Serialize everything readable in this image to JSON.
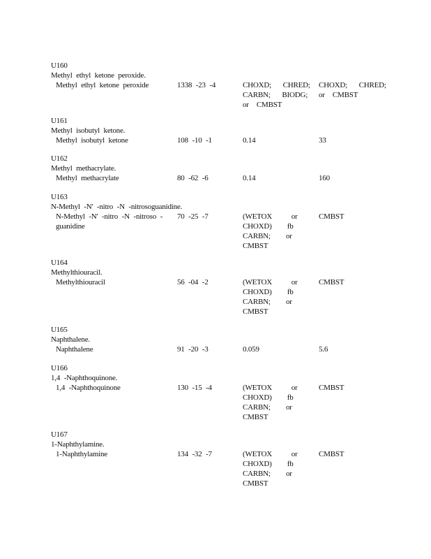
{
  "entries": [
    {
      "code": "U160",
      "heading": "Methyl ethyl ketone peroxide.",
      "name": [
        "Methyl ethyl ketone peroxide"
      ],
      "cas": "1338 -23 -4",
      "wastewater": [
        "CHOXD;   CHRED;",
        "CARBN;   BIODG;",
        "or  CMBST"
      ],
      "nonwastewater": [
        "CHOXD;   CHRED;",
        "or  CMBST"
      ]
    },
    {
      "code": "U161",
      "heading": "Methyl isobutyl ketone.",
      "name": [
        "Methyl isobutyl ketone"
      ],
      "cas": "108 -10 -1",
      "wastewater": [
        "0.14"
      ],
      "nonwastewater": [
        "33"
      ]
    },
    {
      "code": "U162",
      "heading": "Methyl methacrylate.",
      "name": [
        "Methyl methacrylate"
      ],
      "cas": "80 -62 -6",
      "wastewater": [
        "0.14"
      ],
      "nonwastewater": [
        "160"
      ]
    },
    {
      "code": "U163",
      "heading": "N-Methyl -N' -nitro -N -nitrosoguanidine.",
      "name": [
        "N-Methyl -N' -nitro -N -nitroso -",
        "guanidine"
      ],
      "cas": "70 -25 -7",
      "wastewater": [
        "(WETOX     or",
        "CHOXD)    fb",
        "CARBN;    or",
        "CMBST"
      ],
      "nonwastewater": [
        "CMBST"
      ]
    },
    {
      "code": "U164",
      "heading": "Methylthiouracil.",
      "name": [
        "Methylthiouracil"
      ],
      "cas": "56 -04 -2",
      "wastewater": [
        "(WETOX     or",
        "CHOXD)    fb",
        "CARBN;    or",
        "CMBST"
      ],
      "nonwastewater": [
        "CMBST"
      ]
    },
    {
      "code": "U165",
      "heading": "Naphthalene.",
      "name": [
        "Naphthalene"
      ],
      "cas": "91 -20 -3",
      "wastewater": [
        "0.059"
      ],
      "nonwastewater": [
        "5.6"
      ]
    },
    {
      "code": "U166",
      "heading": "1,4 -Naphthoquinone.",
      "name": [
        "1,4 -Naphthoquinone"
      ],
      "cas": "130 -15 -4",
      "wastewater": [
        "(WETOX     or",
        "CHOXD)    fb",
        "CARBN;    or",
        "CMBST"
      ],
      "nonwastewater": [
        "CMBST"
      ]
    },
    {
      "code": "U167",
      "heading": "1-Naphthylamine.",
      "name": [
        "1-Naphthylamine"
      ],
      "cas": "134 -32 -7",
      "wastewater": [
        "(WETOX     or",
        "CHOXD)    fb",
        "CARBN;    or",
        "CMBST"
      ],
      "nonwastewater": [
        "CMBST"
      ]
    }
  ]
}
